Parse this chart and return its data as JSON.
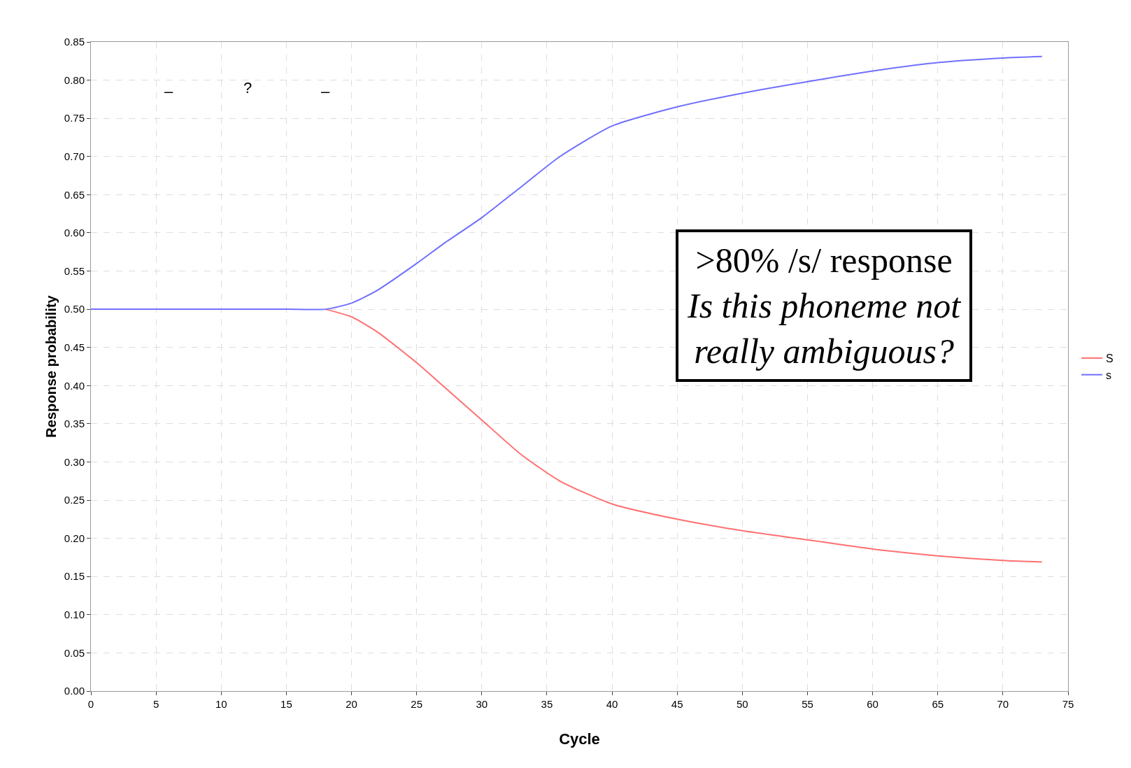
{
  "chart_data": {
    "type": "line",
    "xlabel": "Cycle",
    "ylabel": "Response probability",
    "x": [
      0,
      5,
      10,
      15,
      18,
      20,
      22,
      25,
      27,
      30,
      33,
      36,
      40,
      45,
      50,
      55,
      60,
      65,
      70,
      73
    ],
    "series": [
      {
        "name": "S",
        "color": "#ff7070",
        "values": [
          null,
          null,
          null,
          null,
          0.5,
          0.49,
          0.47,
          0.43,
          0.4,
          0.355,
          0.31,
          0.275,
          0.245,
          0.225,
          0.21,
          0.198,
          0.186,
          0.177,
          0.171,
          0.169
        ]
      },
      {
        "name": "s",
        "color": "#7070ff",
        "values": [
          0.5,
          0.5,
          0.5,
          0.5,
          0.5,
          0.508,
          0.525,
          0.56,
          0.585,
          0.62,
          0.66,
          0.7,
          0.74,
          0.765,
          0.783,
          0.798,
          0.812,
          0.823,
          0.829,
          0.831
        ]
      }
    ],
    "xlim": [
      0,
      75
    ],
    "xticks": [
      0,
      5,
      10,
      15,
      20,
      25,
      30,
      35,
      40,
      45,
      50,
      55,
      60,
      65,
      70,
      75
    ],
    "ylim": [
      0,
      0.85
    ],
    "yticks": [
      {
        "value": 0,
        "label": "0.00"
      },
      {
        "value": 0.05,
        "label": "0.05"
      },
      {
        "value": 0.1,
        "label": "0.10"
      },
      {
        "value": 0.15,
        "label": "0.15"
      },
      {
        "value": 0.2,
        "label": "0.20"
      },
      {
        "value": 0.25,
        "label": "0.25"
      },
      {
        "value": 0.3,
        "label": "0.30"
      },
      {
        "value": 0.35,
        "label": "0.35"
      },
      {
        "value": 0.4,
        "label": "0.40"
      },
      {
        "value": 0.45,
        "label": "0.45"
      },
      {
        "value": 0.5,
        "label": "0.50"
      },
      {
        "value": 0.55,
        "label": "0.55"
      },
      {
        "value": 0.6,
        "label": "0.60"
      },
      {
        "value": 0.65,
        "label": "0.65"
      },
      {
        "value": 0.7,
        "label": "0.70"
      },
      {
        "value": 0.75,
        "label": "0.75"
      },
      {
        "value": 0.8,
        "label": "0.80"
      },
      {
        "value": 0.85,
        "label": "0.85"
      }
    ],
    "grid": true,
    "legend": "right",
    "marker": "none",
    "line_style": "solid",
    "annotations": [
      "–",
      "?",
      "–",
      ">80% /s/ response",
      "Is this phoneme not really ambiguous?"
    ]
  }
}
